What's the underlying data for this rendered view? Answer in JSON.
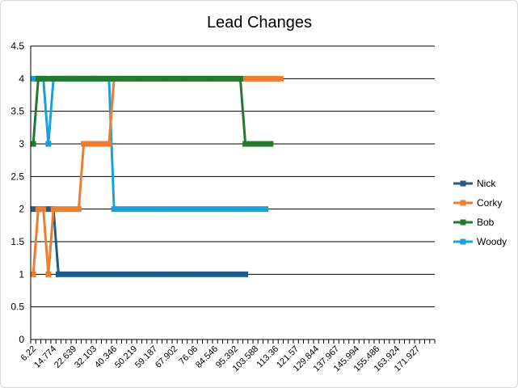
{
  "chart_data": {
    "type": "line",
    "title": "Lead Changes",
    "xlabel": "",
    "ylabel": "",
    "ylim": [
      0,
      4.5
    ],
    "y_ticks": [
      "0",
      "0.5",
      "1",
      "1.5",
      "2",
      "2.5",
      "3",
      "3.5",
      "4",
      "4.5"
    ],
    "grid": true,
    "legend_position": "right",
    "x_tick_labels": [
      "6.22",
      "14.774",
      "22.639",
      "32.103",
      "40.346",
      "50.219",
      "59.187",
      "67.902",
      "76.06",
      "84.546",
      "95.392",
      "103.588",
      "113.36",
      "121.57",
      "129.844",
      "137.967",
      "145.994",
      "155.486",
      "163.924",
      "171.927"
    ],
    "series": [
      {
        "name": "Nick",
        "color": "#1f5c8a",
        "values": [
          2,
          2,
          2,
          2,
          2,
          1,
          1,
          1,
          1,
          1,
          1,
          1,
          1,
          1,
          1,
          1,
          1,
          1,
          1,
          1,
          1,
          1,
          1,
          1,
          1,
          1,
          1,
          1,
          1,
          1,
          1,
          1,
          1,
          1,
          1,
          1,
          1,
          1,
          1,
          1,
          1,
          1,
          1
        ]
      },
      {
        "name": "Corky",
        "color": "#ed7d31",
        "values": [
          1,
          2,
          2,
          1,
          2,
          2,
          2,
          2,
          2,
          2,
          3,
          3,
          3,
          3,
          3,
          3,
          4,
          4,
          4,
          4,
          4,
          4,
          4,
          4,
          4,
          4,
          4,
          4,
          4,
          4,
          4,
          4,
          4,
          4,
          4,
          4,
          4,
          4,
          4,
          4,
          4,
          4,
          4,
          4,
          4,
          4,
          4,
          4,
          4,
          4
        ]
      },
      {
        "name": "Bob",
        "color": "#217a2e",
        "values": [
          3,
          4,
          4,
          4,
          4,
          4,
          4,
          4,
          4,
          4,
          4,
          4,
          4,
          4,
          4,
          4,
          4,
          4,
          4,
          4,
          4,
          4,
          4,
          4,
          4,
          4,
          4,
          4,
          4,
          4,
          4,
          4,
          4,
          4,
          4,
          4,
          4,
          4,
          4,
          4,
          4,
          4,
          3,
          3,
          3,
          3,
          3,
          3
        ]
      },
      {
        "name": "Woody",
        "color": "#1aa1dc",
        "values": [
          4,
          4,
          4,
          3,
          4,
          4,
          4,
          4,
          4,
          4,
          4,
          4,
          4,
          4,
          4,
          4,
          2,
          2,
          2,
          2,
          2,
          2,
          2,
          2,
          2,
          2,
          2,
          2,
          2,
          2,
          2,
          2,
          2,
          2,
          2,
          2,
          2,
          2,
          2,
          2,
          2,
          2,
          2,
          2,
          2,
          2,
          2
        ]
      }
    ]
  }
}
